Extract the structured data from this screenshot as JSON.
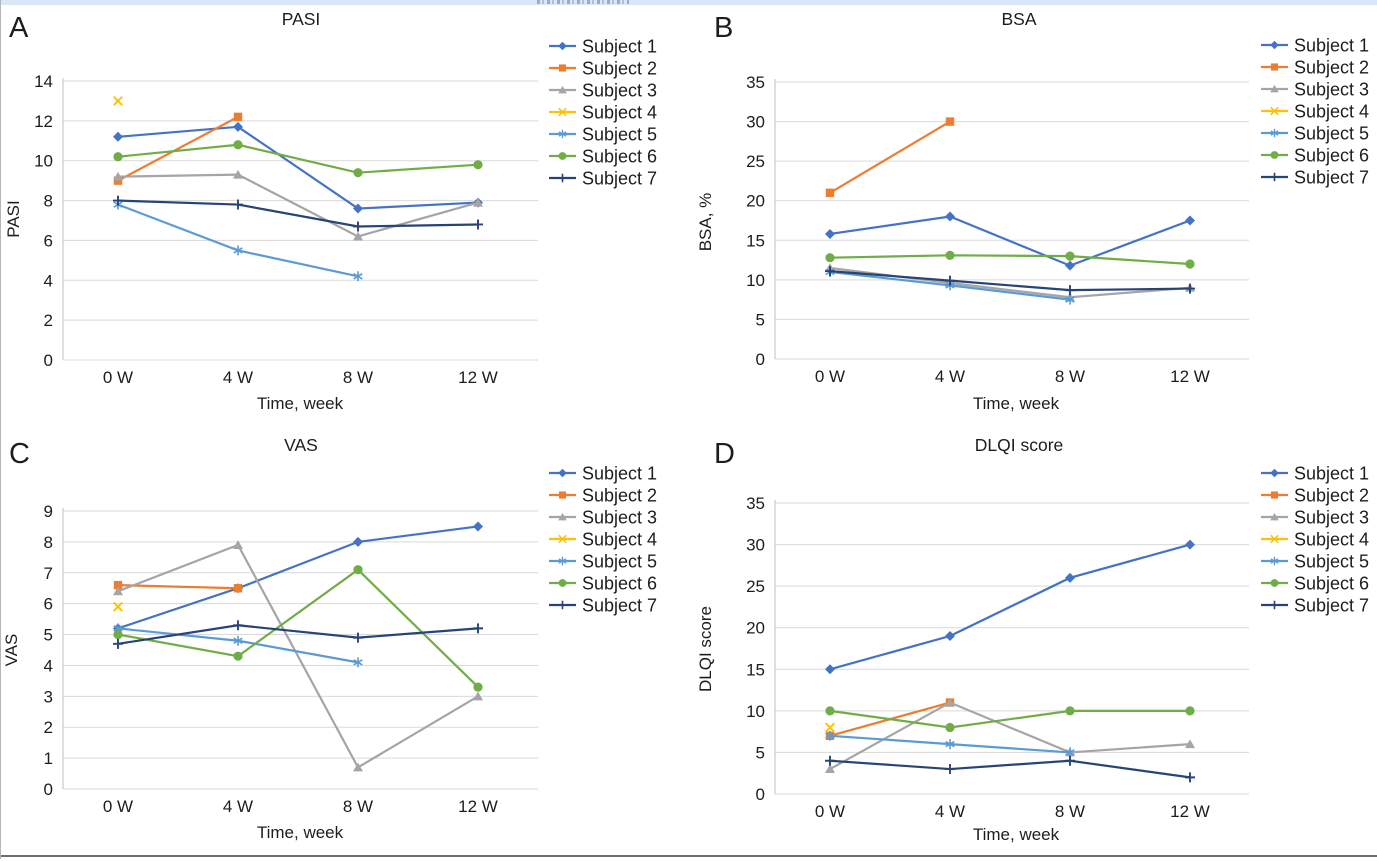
{
  "page": {
    "background": "#ffffff",
    "top_strip_color": "#dae6f7",
    "bottom_rule_color": "#6f6f6f"
  },
  "chart_data": [
    {
      "panel_label": "A",
      "type": "line",
      "title": "PASI",
      "ylabel": "PASI",
      "xlabel": "Time, week",
      "categories": [
        "0 W",
        "4 W",
        "8 W",
        "12 W"
      ],
      "ylim": [
        0,
        14
      ],
      "ytick_step": 2,
      "grid": true,
      "legend_position": "right",
      "series": [
        {
          "name": "Subject 1",
          "marker": "diamond",
          "color": "#4472C4",
          "values": [
            11.2,
            11.7,
            7.6,
            7.9
          ]
        },
        {
          "name": "Subject 2",
          "marker": "square",
          "color": "#ED7D31",
          "values": [
            9.0,
            12.2,
            null,
            null
          ]
        },
        {
          "name": "Subject 3",
          "marker": "triangle",
          "color": "#A5A5A5",
          "values": [
            9.2,
            9.3,
            6.2,
            7.9
          ]
        },
        {
          "name": "Subject 4",
          "marker": "x",
          "color": "#FFC000",
          "values": [
            13.0,
            null,
            null,
            null
          ]
        },
        {
          "name": "Subject 5",
          "marker": "asterisk",
          "color": "#5B9BD5",
          "values": [
            7.8,
            5.5,
            4.2,
            null
          ]
        },
        {
          "name": "Subject 6",
          "marker": "circle",
          "color": "#70AD47",
          "values": [
            10.2,
            10.8,
            9.4,
            9.8
          ]
        },
        {
          "name": "Subject 7",
          "marker": "plus",
          "color": "#264478",
          "values": [
            8.0,
            7.8,
            6.7,
            6.8
          ]
        }
      ]
    },
    {
      "panel_label": "B",
      "type": "line",
      "title": "BSA",
      "ylabel": "BSA, %",
      "xlabel": "Time, week",
      "categories": [
        "0 W",
        "4 W",
        "8 W",
        "12 W"
      ],
      "ylim": [
        0,
        35
      ],
      "ytick_step": 5,
      "grid": true,
      "legend_position": "right",
      "series": [
        {
          "name": "Subject 1",
          "marker": "diamond",
          "color": "#4472C4",
          "values": [
            15.8,
            18.0,
            11.8,
            17.5
          ]
        },
        {
          "name": "Subject 2",
          "marker": "square",
          "color": "#ED7D31",
          "values": [
            21.0,
            30.0,
            null,
            null
          ]
        },
        {
          "name": "Subject 3",
          "marker": "triangle",
          "color": "#A5A5A5",
          "values": [
            11.5,
            9.6,
            7.8,
            9.0
          ]
        },
        {
          "name": "Subject 4",
          "marker": "x",
          "color": "#FFC000",
          "values": [
            null,
            null,
            null,
            null
          ]
        },
        {
          "name": "Subject 5",
          "marker": "asterisk",
          "color": "#5B9BD5",
          "values": [
            11.0,
            9.3,
            7.5,
            null
          ]
        },
        {
          "name": "Subject 6",
          "marker": "circle",
          "color": "#70AD47",
          "values": [
            12.8,
            13.1,
            13.0,
            12.0
          ]
        },
        {
          "name": "Subject 7",
          "marker": "plus",
          "color": "#264478",
          "values": [
            11.1,
            9.9,
            8.7,
            8.9
          ]
        }
      ]
    },
    {
      "panel_label": "C",
      "type": "line",
      "title": "VAS",
      "ylabel": "VAS",
      "xlabel": "Time, week",
      "categories": [
        "0 W",
        "4 W",
        "8 W",
        "12 W"
      ],
      "ylim": [
        0,
        9
      ],
      "ytick_step": 1,
      "grid": true,
      "legend_position": "right",
      "series": [
        {
          "name": "Subject 1",
          "marker": "diamond",
          "color": "#4472C4",
          "values": [
            5.2,
            6.5,
            8.0,
            8.5
          ]
        },
        {
          "name": "Subject 2",
          "marker": "square",
          "color": "#ED7D31",
          "values": [
            6.6,
            6.5,
            null,
            null
          ]
        },
        {
          "name": "Subject 3",
          "marker": "triangle",
          "color": "#A5A5A5",
          "values": [
            6.4,
            7.9,
            0.7,
            3.0
          ]
        },
        {
          "name": "Subject 4",
          "marker": "x",
          "color": "#FFC000",
          "values": [
            5.9,
            null,
            null,
            null
          ]
        },
        {
          "name": "Subject 5",
          "marker": "asterisk",
          "color": "#5B9BD5",
          "values": [
            5.2,
            4.8,
            4.1,
            null
          ]
        },
        {
          "name": "Subject 6",
          "marker": "circle",
          "color": "#70AD47",
          "values": [
            5.0,
            4.3,
            7.1,
            3.3
          ]
        },
        {
          "name": "Subject 7",
          "marker": "plus",
          "color": "#264478",
          "values": [
            4.7,
            5.3,
            4.9,
            5.2
          ]
        }
      ]
    },
    {
      "panel_label": "D",
      "type": "line",
      "title": "DLQI score",
      "ylabel": "DLQI score",
      "xlabel": "Time, week",
      "categories": [
        "0 W",
        "4 W",
        "8 W",
        "12 W"
      ],
      "ylim": [
        0,
        35
      ],
      "ytick_step": 5,
      "grid": true,
      "legend_position": "right",
      "series": [
        {
          "name": "Subject 1",
          "marker": "diamond",
          "color": "#4472C4",
          "values": [
            15,
            19,
            26,
            30
          ]
        },
        {
          "name": "Subject 2",
          "marker": "square",
          "color": "#ED7D31",
          "values": [
            7,
            11,
            null,
            null
          ]
        },
        {
          "name": "Subject 3",
          "marker": "triangle",
          "color": "#A5A5A5",
          "values": [
            3,
            11,
            5,
            6
          ]
        },
        {
          "name": "Subject 4",
          "marker": "x",
          "color": "#FFC000",
          "values": [
            8,
            null,
            null,
            null
          ]
        },
        {
          "name": "Subject 5",
          "marker": "asterisk",
          "color": "#5B9BD5",
          "values": [
            7,
            6,
            5,
            null
          ]
        },
        {
          "name": "Subject 6",
          "marker": "circle",
          "color": "#70AD47",
          "values": [
            10,
            8,
            10,
            10
          ]
        },
        {
          "name": "Subject 7",
          "marker": "plus",
          "color": "#264478",
          "values": [
            4,
            3,
            4,
            2
          ]
        }
      ]
    }
  ],
  "style": {
    "gridline_color": "#d9d9d9",
    "axis_color": "#c0c0c0",
    "text_color": "#1d1d1d"
  }
}
